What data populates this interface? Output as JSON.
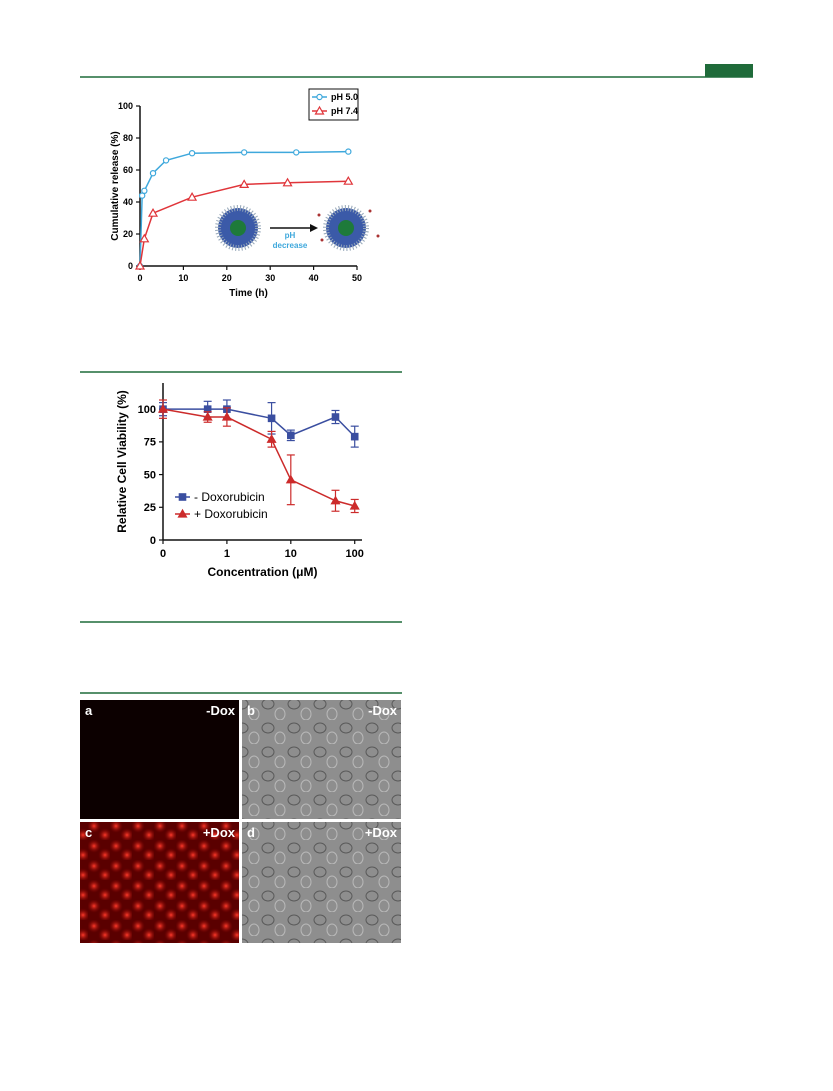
{
  "chart_data": [
    {
      "type": "line",
      "xlabel": "Time (h)",
      "ylabel": "Cumulative release (%)",
      "xlim": [
        0,
        50
      ],
      "xticks": [
        0,
        10,
        20,
        30,
        40,
        50
      ],
      "ylim": [
        0,
        100
      ],
      "yticks": [
        0,
        20,
        40,
        60,
        80,
        100
      ],
      "legend": "upper right",
      "annotations": [
        "pH",
        "decrease"
      ],
      "series": [
        {
          "name": "pH 5.0",
          "color": "#3ea8dc",
          "marker": "circle",
          "x": [
            0,
            0.5,
            1,
            3,
            6,
            12,
            24,
            36,
            48
          ],
          "values": [
            0,
            44,
            47,
            58,
            66,
            70.5,
            71,
            71,
            71.5
          ]
        },
        {
          "name": "pH 7.4",
          "color": "#e0353a",
          "marker": "triangle",
          "x": [
            0,
            1,
            3,
            12,
            24,
            34,
            48
          ],
          "values": [
            0,
            17,
            33,
            43,
            51,
            52,
            53
          ]
        }
      ]
    },
    {
      "type": "line",
      "xlabel": "Concentration (μM)",
      "ylabel": "Relative Cell Viability (%)",
      "xscale": "log",
      "xlim": [
        0,
        130
      ],
      "xticks": [
        0,
        1,
        10,
        100
      ],
      "ylim": [
        0,
        120
      ],
      "yticks": [
        0,
        25,
        50,
        75,
        100
      ],
      "legend": "lower left",
      "series": [
        {
          "name": "- Doxorubicin",
          "color": "#3a4ea0",
          "marker": "square",
          "x": [
            0,
            0.5,
            1,
            5,
            10,
            50,
            100
          ],
          "values": [
            100,
            100,
            100,
            93,
            80,
            94,
            79
          ],
          "errors": [
            5,
            6,
            7,
            12,
            4,
            5,
            8
          ]
        },
        {
          "name": "+ Doxorubicin",
          "color": "#cc2b2b",
          "marker": "triangle",
          "x": [
            0,
            0.5,
            1,
            5,
            10,
            50,
            100
          ],
          "values": [
            100,
            94,
            94,
            77,
            46,
            30,
            26
          ],
          "errors": [
            7,
            4,
            7,
            6,
            19,
            8,
            5
          ]
        }
      ]
    }
  ],
  "panels": [
    {
      "letter": "a",
      "label": "-Dox"
    },
    {
      "letter": "b",
      "label": "-Dox"
    },
    {
      "letter": "c",
      "label": "+Dox"
    },
    {
      "letter": "d",
      "label": "+Dox"
    }
  ]
}
